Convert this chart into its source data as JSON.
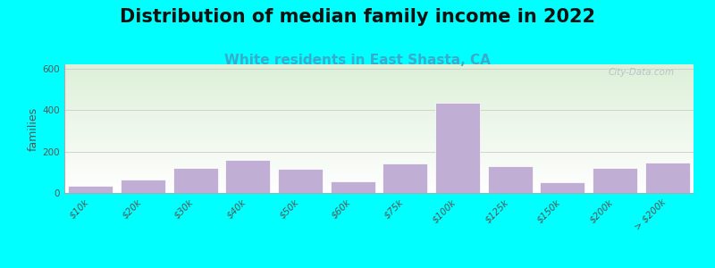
{
  "title": "Distribution of median family income in 2022",
  "subtitle": "White residents in East Shasta, CA",
  "ylabel": "families",
  "categories": [
    "$10k",
    "$20k",
    "$30k",
    "$40k",
    "$50k",
    "$60k",
    "$75k",
    "$100k",
    "$125k",
    "$150k",
    "$200k",
    "> $200k"
  ],
  "values": [
    35,
    65,
    120,
    160,
    115,
    55,
    140,
    435,
    130,
    50,
    120,
    145
  ],
  "bar_color": "#c0aed4",
  "bar_edgecolor": "#ffffff",
  "background_outer": "#00ffff",
  "background_inner_top": "#ddf0d8",
  "background_inner_bottom": "#ffffff",
  "ylim": [
    0,
    620
  ],
  "yticks": [
    0,
    200,
    400,
    600
  ],
  "title_fontsize": 15,
  "subtitle_fontsize": 11,
  "subtitle_color": "#3aabcc",
  "ylabel_fontsize": 9,
  "tick_fontsize": 7.5,
  "watermark": "City-Data.com"
}
